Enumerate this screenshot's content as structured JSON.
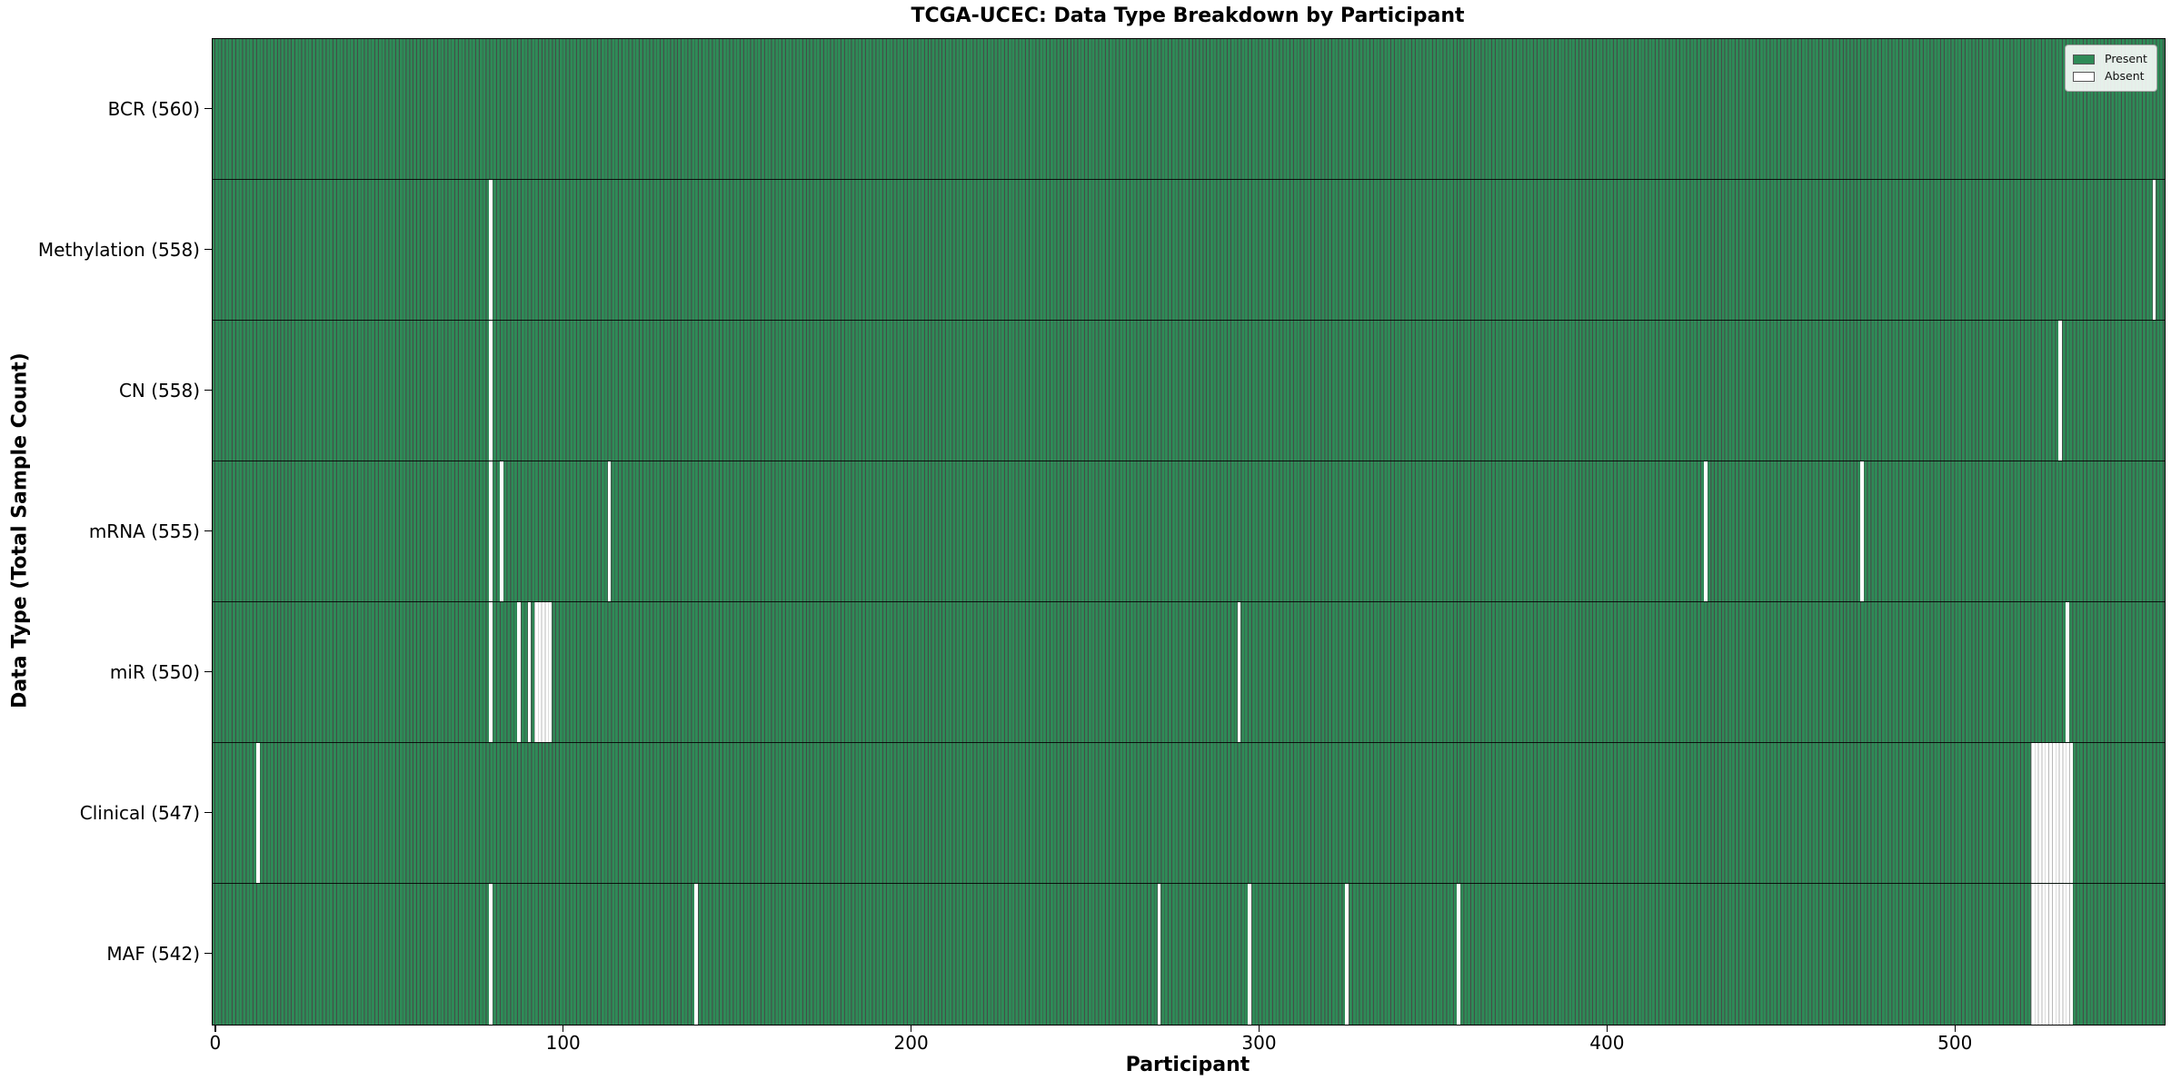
{
  "title": "TCGA-UCEC: Data Type Breakdown by Participant",
  "xlabel": "Participant",
  "ylabel": "Data Type (Total Sample Count)",
  "legend": {
    "present_label": "Present",
    "absent_label": "Absent"
  },
  "colors": {
    "present_fill": "#2e8b57",
    "bar_edge": "rgba(0,0,0,0.72)",
    "absent_fill": "#ffffff",
    "absent_edge": "#b9b9b9"
  },
  "chart_data": {
    "type": "heatmap",
    "title": "TCGA-UCEC: Data Type Breakdown by Participant",
    "xlabel": "Participant",
    "ylabel": "Data Type (Total Sample Count)",
    "legend_entries": [
      "Present",
      "Absent"
    ],
    "legend_position": "upper right",
    "n_participants": 560,
    "x_ticks": [
      0,
      100,
      200,
      300,
      400,
      500
    ],
    "xlim": [
      -0.5,
      560.5
    ],
    "rows": [
      {
        "name": "BCR",
        "label": "BCR (560)",
        "total": 560,
        "absent_ranges": []
      },
      {
        "name": "Methylation",
        "label": "Methylation (558)",
        "total": 558,
        "absent_ranges": [
          [
            79,
            79
          ],
          [
            557,
            557
          ]
        ]
      },
      {
        "name": "CN",
        "label": "CN (558)",
        "total": 558,
        "absent_ranges": [
          [
            79,
            79
          ],
          [
            530,
            530
          ]
        ]
      },
      {
        "name": "mRNA",
        "label": "mRNA (555)",
        "total": 555,
        "absent_ranges": [
          [
            79,
            79
          ],
          [
            82,
            82
          ],
          [
            113,
            113
          ],
          [
            428,
            428
          ],
          [
            473,
            473
          ]
        ]
      },
      {
        "name": "miR",
        "label": "miR (550)",
        "total": 550,
        "absent_ranges": [
          [
            79,
            79
          ],
          [
            87,
            87
          ],
          [
            90,
            90
          ],
          [
            92,
            96
          ],
          [
            294,
            294
          ],
          [
            532,
            532
          ]
        ]
      },
      {
        "name": "Clinical",
        "label": "Clinical (547)",
        "total": 547,
        "absent_ranges": [
          [
            12,
            12
          ],
          [
            522,
            533
          ]
        ]
      },
      {
        "name": "MAF",
        "label": "MAF (542)",
        "total": 542,
        "absent_ranges": [
          [
            79,
            79
          ],
          [
            138,
            138
          ],
          [
            271,
            271
          ],
          [
            297,
            297
          ],
          [
            325,
            325
          ],
          [
            357,
            357
          ],
          [
            522,
            533
          ]
        ]
      }
    ]
  }
}
